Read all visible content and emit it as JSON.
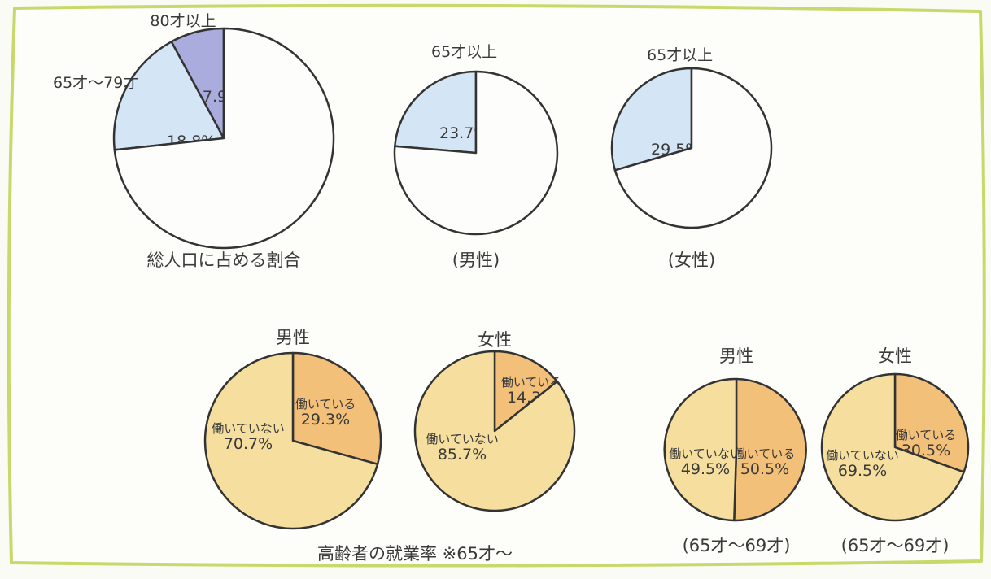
{
  "colors": {
    "ink": "#3a3a3a",
    "frame": "#c8d86a",
    "blue_light": "#d4e6f6",
    "blue_dark": "#a9acdc",
    "orange": "#f3c07a",
    "yellow": "#f6df9e",
    "white": "#fdfdfb"
  },
  "chart_data": [
    {
      "type": "pie",
      "title": "",
      "caption": "総人口に占める割合",
      "slices": [
        {
          "label": "80才以上",
          "value": 7.9,
          "text": "7.9%"
        },
        {
          "label": "65才〜79才",
          "value": 18.8,
          "text": "18.8%"
        },
        {
          "label": "",
          "value": 73.3,
          "text": ""
        }
      ]
    },
    {
      "type": "pie",
      "title": "",
      "caption": "(男性)",
      "slices": [
        {
          "label": "65才以上",
          "value": 23.7,
          "text": "23.7%"
        },
        {
          "label": "",
          "value": 76.3,
          "text": ""
        }
      ]
    },
    {
      "type": "pie",
      "title": "",
      "caption": "(女性)",
      "slices": [
        {
          "label": "65才以上",
          "value": 29.5,
          "text": "29.5%"
        },
        {
          "label": "",
          "value": 70.5,
          "text": ""
        }
      ]
    },
    {
      "type": "pie",
      "title": "男性",
      "caption": "",
      "slices": [
        {
          "label": "働いている",
          "value": 29.3,
          "text": "29.3%"
        },
        {
          "label": "働いていない",
          "value": 70.7,
          "text": "70.7%"
        }
      ]
    },
    {
      "type": "pie",
      "title": "女性",
      "caption": "",
      "slices": [
        {
          "label": "働いている",
          "value": 14.3,
          "text": "14.3%"
        },
        {
          "label": "働いていない",
          "value": 85.7,
          "text": "85.7%"
        }
      ]
    },
    {
      "type": "pie",
      "title": "男性",
      "caption": "(65才〜69才)",
      "slices": [
        {
          "label": "働いている",
          "value": 50.5,
          "text": "50.5%"
        },
        {
          "label": "働いていない",
          "value": 49.5,
          "text": "49.5%"
        }
      ]
    },
    {
      "type": "pie",
      "title": "女性",
      "caption": "(65才〜69才)",
      "slices": [
        {
          "label": "働いている",
          "value": 30.5,
          "text": "30.5%"
        },
        {
          "label": "働いていない",
          "value": 69.5,
          "text": "69.5%"
        }
      ]
    }
  ],
  "group_caption": "高齢者の就業率 ※65才〜"
}
